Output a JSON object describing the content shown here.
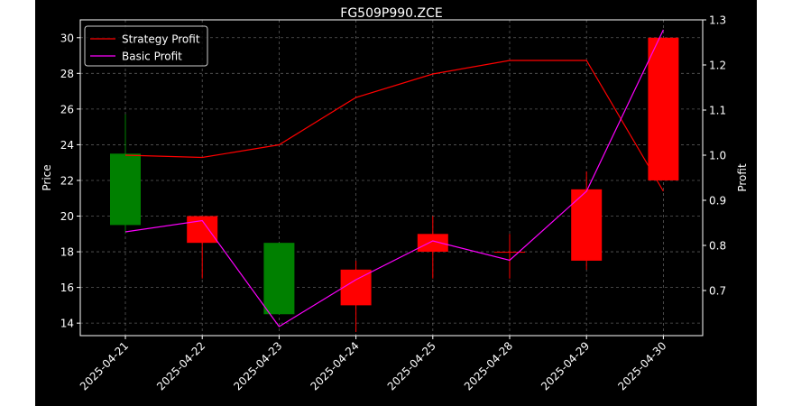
{
  "chart_data": {
    "type": "candlestick",
    "title": "FG509P990.ZCE",
    "xlabel": "",
    "ylabel_left": "Price",
    "ylabel_right": "Profit",
    "categories": [
      "2025-04-21",
      "2025-04-22",
      "2025-04-23",
      "2025-04-24",
      "2025-04-25",
      "2025-04-28",
      "2025-04-29",
      "2025-04-30"
    ],
    "ylim_left": [
      13.3,
      31.0
    ],
    "yticks_left": [
      14,
      16,
      18,
      20,
      22,
      24,
      26,
      28,
      30
    ],
    "ylim_right": [
      0.6,
      1.3
    ],
    "yticks_right": [
      0.7,
      0.8,
      0.9,
      1.0,
      1.1,
      1.2,
      1.3
    ],
    "grid": true,
    "legend_position": "top-left",
    "candles": [
      {
        "date": "2025-04-21",
        "open": 19.5,
        "close": 23.5,
        "high": 25.7,
        "low": 19.0
      },
      {
        "date": "2025-04-22",
        "open": 20.0,
        "close": 18.5,
        "high": 20.0,
        "low": 16.5
      },
      {
        "date": "2025-04-23",
        "open": 14.5,
        "close": 18.5,
        "high": 18.5,
        "low": 14.5
      },
      {
        "date": "2025-04-24",
        "open": 17.0,
        "close": 15.0,
        "high": 17.5,
        "low": 13.5
      },
      {
        "date": "2025-04-25",
        "open": 19.0,
        "close": 18.0,
        "high": 20.0,
        "low": 16.5
      },
      {
        "date": "2025-04-28",
        "open": 18.0,
        "close": 18.0,
        "high": 19.0,
        "low": 16.5
      },
      {
        "date": "2025-04-29",
        "open": 21.5,
        "close": 17.5,
        "high": 22.5,
        "low": 17.0
      },
      {
        "date": "2025-04-30",
        "open": 30.0,
        "close": 22.0,
        "high": 30.0,
        "low": 22.0
      }
    ],
    "series": [
      {
        "name": "Strategy Profit",
        "color": "#ff0000",
        "axis": "right",
        "values": [
          1.0,
          0.995,
          1.023,
          1.128,
          1.18,
          1.21,
          1.21,
          0.92
        ]
      },
      {
        "name": "Basic Profit",
        "color": "#ff00ff",
        "axis": "right",
        "values": [
          0.83,
          0.855,
          0.62,
          0.724,
          0.81,
          0.767,
          0.92,
          1.278
        ]
      }
    ],
    "colors": {
      "up": "#008000",
      "down": "#ff0000",
      "background": "#000000",
      "axes": "#ffffff",
      "grid": "#808080"
    }
  }
}
